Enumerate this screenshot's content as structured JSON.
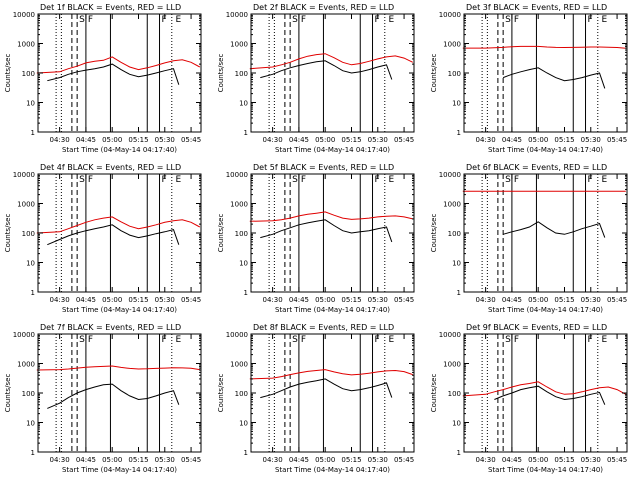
{
  "xlabel": "Start Time (04-May-14 04:17:40)",
  "ylabel": "Counts/sec",
  "colors": {
    "events": "#000000",
    "lld": "#e00000",
    "axes": "#000000"
  },
  "chart_data": [
    {
      "type": "line",
      "title": "Det 1f BLACK = Events, RED = LLD",
      "xlabel": "Start Time (04-May-14 04:17:40)",
      "ylabel": "Counts/sec",
      "xticks": [
        "04:30",
        "04:45",
        "05:00",
        "05:15",
        "05:30",
        "05:45"
      ],
      "yticks": [
        "1",
        "10",
        "100",
        "1000",
        "10000"
      ],
      "ylim": [
        1,
        10000
      ],
      "log_y": true,
      "markers": [
        "S",
        "F",
        "F",
        "E"
      ],
      "series": [
        {
          "x": [
            "04:17",
            "04:30",
            "04:35",
            "04:40",
            "04:45",
            "04:50",
            "04:55",
            "05:00",
            "05:05",
            "05:10",
            "05:15",
            "05:20",
            "05:25",
            "05:30",
            "05:35",
            "05:40",
            "05:45",
            "05:50"
          ],
          "values": [
            100,
            110,
            140,
            170,
            220,
            250,
            270,
            350,
            230,
            160,
            130,
            150,
            180,
            220,
            260,
            280,
            230,
            160
          ]
        },
        {
          "x": [
            "04:23",
            "04:30",
            "04:35",
            "04:40",
            "04:45",
            "04:50",
            "04:55",
            "05:00",
            "05:05",
            "05:10",
            "05:15",
            "05:20",
            "05:25",
            "05:30",
            "05:35",
            "05:38"
          ],
          "values": [
            55,
            70,
            90,
            110,
            125,
            140,
            160,
            200,
            130,
            90,
            75,
            85,
            100,
            120,
            140,
            40
          ]
        }
      ]
    },
    {
      "type": "line",
      "title": "Det 2f BLACK = Events, RED = LLD",
      "xlabel": "Start Time (04-May-14 04:17:40)",
      "ylabel": "Counts/sec",
      "xticks": [
        "04:30",
        "04:45",
        "05:00",
        "05:15",
        "05:30",
        "05:45"
      ],
      "yticks": [
        "1",
        "10",
        "100",
        "1000",
        "10000"
      ],
      "ylim": [
        1,
        10000
      ],
      "log_y": true,
      "markers": [
        "S",
        "F",
        "F",
        "E"
      ],
      "series": [
        {
          "x": [
            "04:17",
            "04:30",
            "04:35",
            "04:40",
            "04:45",
            "04:50",
            "04:55",
            "05:00",
            "05:05",
            "05:10",
            "05:15",
            "05:20",
            "05:25",
            "05:30",
            "05:35",
            "05:40",
            "05:45",
            "05:50"
          ],
          "values": [
            140,
            160,
            190,
            230,
            300,
            370,
            420,
            450,
            330,
            230,
            190,
            210,
            250,
            300,
            350,
            380,
            320,
            230
          ]
        },
        {
          "x": [
            "04:23",
            "04:30",
            "04:35",
            "04:40",
            "04:45",
            "04:50",
            "04:55",
            "05:00",
            "05:05",
            "05:10",
            "05:15",
            "05:20",
            "05:25",
            "05:30",
            "05:35",
            "05:38"
          ],
          "values": [
            70,
            90,
            120,
            150,
            180,
            210,
            240,
            260,
            180,
            120,
            100,
            110,
            130,
            160,
            190,
            60
          ]
        }
      ]
    },
    {
      "type": "line",
      "title": "Det 3f BLACK = Events, RED = LLD",
      "xlabel": "Start Time (04-May-14 04:17:40)",
      "ylabel": "Counts/sec",
      "xticks": [
        "04:30",
        "04:45",
        "05:00",
        "05:15",
        "05:30",
        "05:45"
      ],
      "yticks": [
        "1",
        "10",
        "100",
        "1000",
        "10000"
      ],
      "ylim": [
        1,
        10000
      ],
      "log_y": true,
      "markers": [
        "S",
        "F",
        "F",
        "E"
      ],
      "series": [
        {
          "x": [
            "04:17",
            "04:30",
            "04:35",
            "04:40",
            "04:45",
            "04:50",
            "04:55",
            "05:00",
            "05:05",
            "05:10",
            "05:15",
            "05:20",
            "05:25",
            "05:30",
            "05:35",
            "05:40",
            "05:45",
            "05:50"
          ],
          "values": [
            700,
            700,
            720,
            740,
            780,
            800,
            800,
            800,
            760,
            740,
            730,
            740,
            750,
            760,
            760,
            750,
            730,
            690
          ]
        },
        {
          "x": [
            "04:23",
            "04:30",
            "04:35",
            "04:40",
            "04:45",
            "04:50",
            "04:55",
            "05:00",
            "05:05",
            "05:10",
            "05:15",
            "05:20",
            "05:25",
            "05:30",
            "05:35",
            "05:38"
          ],
          "values": [
            null,
            null,
            null,
            70,
            90,
            110,
            130,
            150,
            100,
            70,
            55,
            60,
            70,
            85,
            100,
            30
          ]
        }
      ]
    },
    {
      "type": "line",
      "title": "Det 4f BLACK = Events, RED = LLD",
      "xlabel": "Start Time (04-May-14 04:17:40)",
      "ylabel": "Counts/sec",
      "xticks": [
        "04:30",
        "04:45",
        "05:00",
        "05:15",
        "05:30",
        "05:45"
      ],
      "yticks": [
        "1",
        "10",
        "100",
        "1000",
        "10000"
      ],
      "ylim": [
        1,
        10000
      ],
      "log_y": true,
      "markers": [
        "S",
        "F",
        "F",
        "E"
      ],
      "series": [
        {
          "x": [
            "04:17",
            "04:30",
            "04:35",
            "04:40",
            "04:45",
            "04:50",
            "04:55",
            "05:00",
            "05:05",
            "05:10",
            "05:15",
            "05:20",
            "05:25",
            "05:30",
            "05:35",
            "05:40",
            "05:45",
            "05:50"
          ],
          "values": [
            100,
            110,
            140,
            180,
            230,
            280,
            320,
            350,
            240,
            170,
            140,
            160,
            190,
            230,
            260,
            280,
            230,
            160
          ]
        },
        {
          "x": [
            "04:23",
            "04:30",
            "04:35",
            "04:40",
            "04:45",
            "04:50",
            "04:55",
            "05:00",
            "05:05",
            "05:10",
            "05:15",
            "05:20",
            "05:25",
            "05:30",
            "05:35",
            "05:38"
          ],
          "values": [
            40,
            60,
            80,
            100,
            120,
            140,
            160,
            190,
            120,
            85,
            70,
            80,
            95,
            110,
            130,
            40
          ]
        }
      ]
    },
    {
      "type": "line",
      "title": "Det 5f BLACK = Events, RED = LLD",
      "xlabel": "Start Time (04-May-14 04:17:40)",
      "ylabel": "Counts/sec",
      "xticks": [
        "04:30",
        "04:45",
        "05:00",
        "05:15",
        "05:30",
        "05:45"
      ],
      "yticks": [
        "1",
        "10",
        "100",
        "1000",
        "10000"
      ],
      "ylim": [
        1,
        10000
      ],
      "log_y": true,
      "markers": [
        "S",
        "F",
        "F",
        "E"
      ],
      "series": [
        {
          "x": [
            "04:17",
            "04:30",
            "04:35",
            "04:40",
            "04:45",
            "04:50",
            "04:55",
            "05:00",
            "05:05",
            "05:10",
            "05:15",
            "05:20",
            "05:25",
            "05:30",
            "05:35",
            "05:40",
            "05:45",
            "05:50"
          ],
          "values": [
            250,
            260,
            280,
            320,
            380,
            430,
            470,
            520,
            400,
            320,
            290,
            300,
            320,
            350,
            370,
            380,
            350,
            300
          ]
        },
        {
          "x": [
            "04:23",
            "04:30",
            "04:35",
            "04:40",
            "04:45",
            "04:50",
            "04:55",
            "05:00",
            "05:05",
            "05:10",
            "05:15",
            "05:20",
            "05:25",
            "05:30",
            "05:35",
            "05:38"
          ],
          "values": [
            70,
            90,
            120,
            150,
            190,
            220,
            250,
            280,
            180,
            120,
            100,
            110,
            120,
            140,
            160,
            50
          ]
        }
      ]
    },
    {
      "type": "line",
      "title": "Det 6f BLACK = Events, RED = LLD",
      "xlabel": "Start Time (04-May-14 04:17:40)",
      "ylabel": "Counts/sec",
      "xticks": [
        "04:30",
        "04:45",
        "05:00",
        "05:15",
        "05:30",
        "05:45"
      ],
      "yticks": [
        "1",
        "10",
        "100",
        "1000",
        "10000"
      ],
      "ylim": [
        1,
        10000
      ],
      "log_y": true,
      "markers": [
        "S",
        "F",
        "F",
        "E"
      ],
      "series": [
        {
          "x": [
            "04:17",
            "04:30",
            "04:45",
            "05:00",
            "05:15",
            "05:30",
            "05:45",
            "05:50"
          ],
          "values": [
            2600,
            2600,
            2600,
            2600,
            2600,
            2600,
            2600,
            2600
          ]
        },
        {
          "x": [
            "04:23",
            "04:30",
            "04:35",
            "04:40",
            "04:45",
            "04:50",
            "04:55",
            "05:00",
            "05:05",
            "05:10",
            "05:15",
            "05:20",
            "05:25",
            "05:30",
            "05:35",
            "05:38"
          ],
          "values": [
            null,
            null,
            null,
            90,
            110,
            130,
            160,
            240,
            150,
            100,
            90,
            110,
            140,
            170,
            210,
            70
          ]
        }
      ]
    },
    {
      "type": "line",
      "title": "Det 7f BLACK = Events, RED = LLD",
      "xlabel": "Start Time (04-May-14 04:17:40)",
      "ylabel": "Counts/sec",
      "xticks": [
        "04:30",
        "04:45",
        "05:00",
        "05:15",
        "05:30",
        "05:45"
      ],
      "yticks": [
        "1",
        "10",
        "100",
        "1000",
        "10000"
      ],
      "ylim": [
        1,
        10000
      ],
      "log_y": true,
      "markers": [
        "S",
        "F",
        "F",
        "E"
      ],
      "series": [
        {
          "x": [
            "04:17",
            "04:30",
            "04:35",
            "04:40",
            "04:45",
            "04:50",
            "04:55",
            "05:00",
            "05:05",
            "05:10",
            "05:15",
            "05:20",
            "05:25",
            "05:30",
            "05:35",
            "05:40",
            "05:45",
            "05:50"
          ],
          "values": [
            600,
            620,
            650,
            700,
            750,
            780,
            800,
            820,
            740,
            680,
            650,
            660,
            680,
            700,
            720,
            710,
            690,
            620
          ]
        },
        {
          "x": [
            "04:23",
            "04:30",
            "04:35",
            "04:40",
            "04:45",
            "04:50",
            "04:55",
            "05:00",
            "05:05",
            "05:10",
            "05:15",
            "05:20",
            "05:25",
            "05:30",
            "05:35",
            "05:38"
          ],
          "values": [
            30,
            45,
            70,
            100,
            130,
            160,
            190,
            200,
            120,
            80,
            60,
            65,
            80,
            100,
            120,
            40
          ]
        }
      ]
    },
    {
      "type": "line",
      "title": "Det 8f BLACK = Events, RED = LLD",
      "xlabel": "Start Time (04-May-14 04:17:40)",
      "ylabel": "Counts/sec",
      "xticks": [
        "04:30",
        "04:45",
        "05:00",
        "05:15",
        "05:30",
        "05:45"
      ],
      "yticks": [
        "1",
        "10",
        "100",
        "1000",
        "10000"
      ],
      "ylim": [
        1,
        10000
      ],
      "log_y": true,
      "markers": [
        "S",
        "F",
        "F",
        "E"
      ],
      "series": [
        {
          "x": [
            "04:17",
            "04:30",
            "04:35",
            "04:40",
            "04:45",
            "04:50",
            "04:55",
            "05:00",
            "05:05",
            "05:10",
            "05:15",
            "05:20",
            "05:25",
            "05:30",
            "05:35",
            "05:40",
            "05:45",
            "05:50"
          ],
          "values": [
            300,
            320,
            360,
            420,
            480,
            540,
            580,
            620,
            520,
            450,
            410,
            430,
            470,
            520,
            560,
            580,
            530,
            420
          ]
        },
        {
          "x": [
            "04:23",
            "04:30",
            "04:35",
            "04:40",
            "04:45",
            "04:50",
            "04:55",
            "05:00",
            "05:05",
            "05:10",
            "05:15",
            "05:20",
            "05:25",
            "05:30",
            "05:35",
            "05:38"
          ],
          "values": [
            70,
            90,
            120,
            160,
            200,
            230,
            260,
            300,
            200,
            140,
            120,
            130,
            150,
            180,
            220,
            70
          ]
        }
      ]
    },
    {
      "type": "line",
      "title": "Det 9f BLACK = Events, RED = LLD",
      "xlabel": "Start Time (04-May-14 04:17:40)",
      "ylabel": "Counts/sec",
      "xticks": [
        "04:30",
        "04:45",
        "05:00",
        "05:15",
        "05:30",
        "05:45"
      ],
      "yticks": [
        "1",
        "10",
        "100",
        "1000",
        "10000"
      ],
      "ylim": [
        1,
        10000
      ],
      "log_y": true,
      "markers": [
        "S",
        "F",
        "F",
        "E"
      ],
      "series": [
        {
          "x": [
            "04:17",
            "04:30",
            "04:35",
            "04:40",
            "04:45",
            "04:50",
            "04:55",
            "05:00",
            "05:05",
            "05:10",
            "05:15",
            "05:20",
            "05:25",
            "05:30",
            "05:35",
            "05:40",
            "05:45",
            "05:50"
          ],
          "values": [
            80,
            90,
            110,
            130,
            160,
            190,
            210,
            240,
            160,
            110,
            90,
            95,
            110,
            130,
            150,
            160,
            130,
            90
          ]
        },
        {
          "x": [
            "04:23",
            "04:30",
            "04:35",
            "04:40",
            "04:45",
            "04:50",
            "04:55",
            "05:00",
            "05:05",
            "05:10",
            "05:15",
            "05:20",
            "05:25",
            "05:30",
            "05:35",
            "05:38"
          ],
          "values": [
            null,
            null,
            60,
            80,
            100,
            130,
            150,
            170,
            110,
            75,
            60,
            65,
            75,
            90,
            105,
            40
          ]
        }
      ]
    }
  ]
}
